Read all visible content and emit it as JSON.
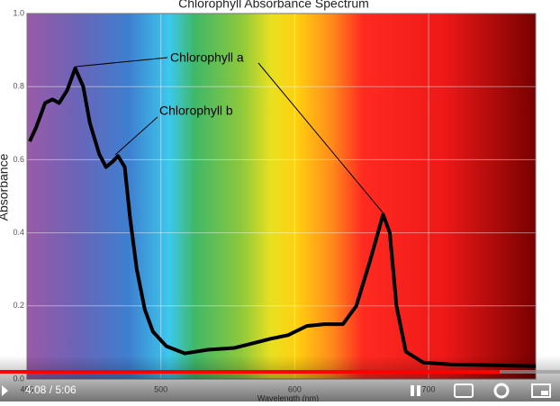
{
  "chart_data": {
    "type": "line",
    "title": "Chlorophyll Absorbance Spectrum",
    "x_label": "Wavelength (nm)",
    "y_label": "Absorbance",
    "x": [
      402,
      407,
      413.5,
      419,
      424,
      430,
      436,
      442,
      447,
      454,
      459,
      464,
      468,
      473,
      477,
      482,
      488,
      494,
      504,
      518,
      535,
      555,
      582,
      595,
      609,
      622,
      636,
      646,
      656,
      666,
      671,
      676,
      683,
      696,
      716,
      780
    ],
    "series": [
      {
        "color": "#000000",
        "values": [
          0.65,
          0.69,
          0.755,
          0.765,
          0.755,
          0.79,
          0.85,
          0.8,
          0.7,
          0.615,
          0.58,
          0.595,
          0.61,
          0.58,
          0.44,
          0.3,
          0.19,
          0.13,
          0.09,
          0.07,
          0.08,
          0.085,
          0.11,
          0.12,
          0.145,
          0.15,
          0.15,
          0.2,
          0.32,
          0.45,
          0.4,
          0.2,
          0.075,
          0.045,
          0.04,
          0.035
        ]
      }
    ],
    "xlim": [
      400,
      780
    ],
    "ylim": [
      0,
      1
    ],
    "xticks": [
      400,
      500,
      600,
      700
    ],
    "yticks": [
      {
        "value": 0,
        "label": "0.0"
      },
      0.2,
      0.4,
      0.6,
      0.8,
      {
        "value": 1,
        "label": "1.0"
      }
    ],
    "grid": true,
    "annotations": [
      {
        "text": "Chlorophyll a"
      },
      {
        "text": "Chlorophyll b"
      }
    ]
  },
  "player": {
    "time": "4:08 / 5:06"
  }
}
